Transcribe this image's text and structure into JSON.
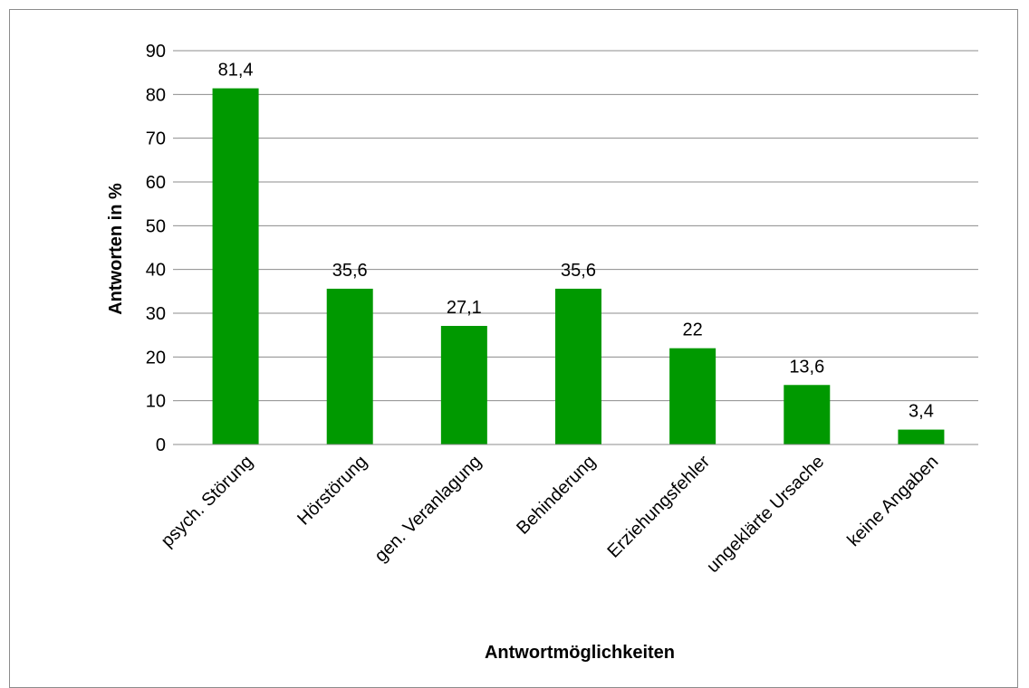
{
  "chart_data": {
    "type": "bar",
    "title": "",
    "xlabel": "Antwortmöglichkeiten",
    "ylabel": "Antworten in %",
    "categories": [
      "psych. Störung",
      "Hörstörung",
      "gen. Veranlagung",
      "Behinderung",
      "Erziehungsfehler",
      "ungeklärte Ursache",
      "keine Angaben"
    ],
    "values": [
      81.4,
      35.6,
      27.1,
      35.6,
      22,
      13.6,
      3.4
    ],
    "data_labels": [
      "81,4",
      "35,6",
      "27,1",
      "35,6",
      "22",
      "13,6",
      "3,4"
    ],
    "ylim": [
      0,
      90
    ],
    "yticks": [
      0,
      10,
      20,
      30,
      40,
      50,
      60,
      70,
      80,
      90
    ],
    "grid": true,
    "legend": "none",
    "bar_color": "#009900"
  }
}
